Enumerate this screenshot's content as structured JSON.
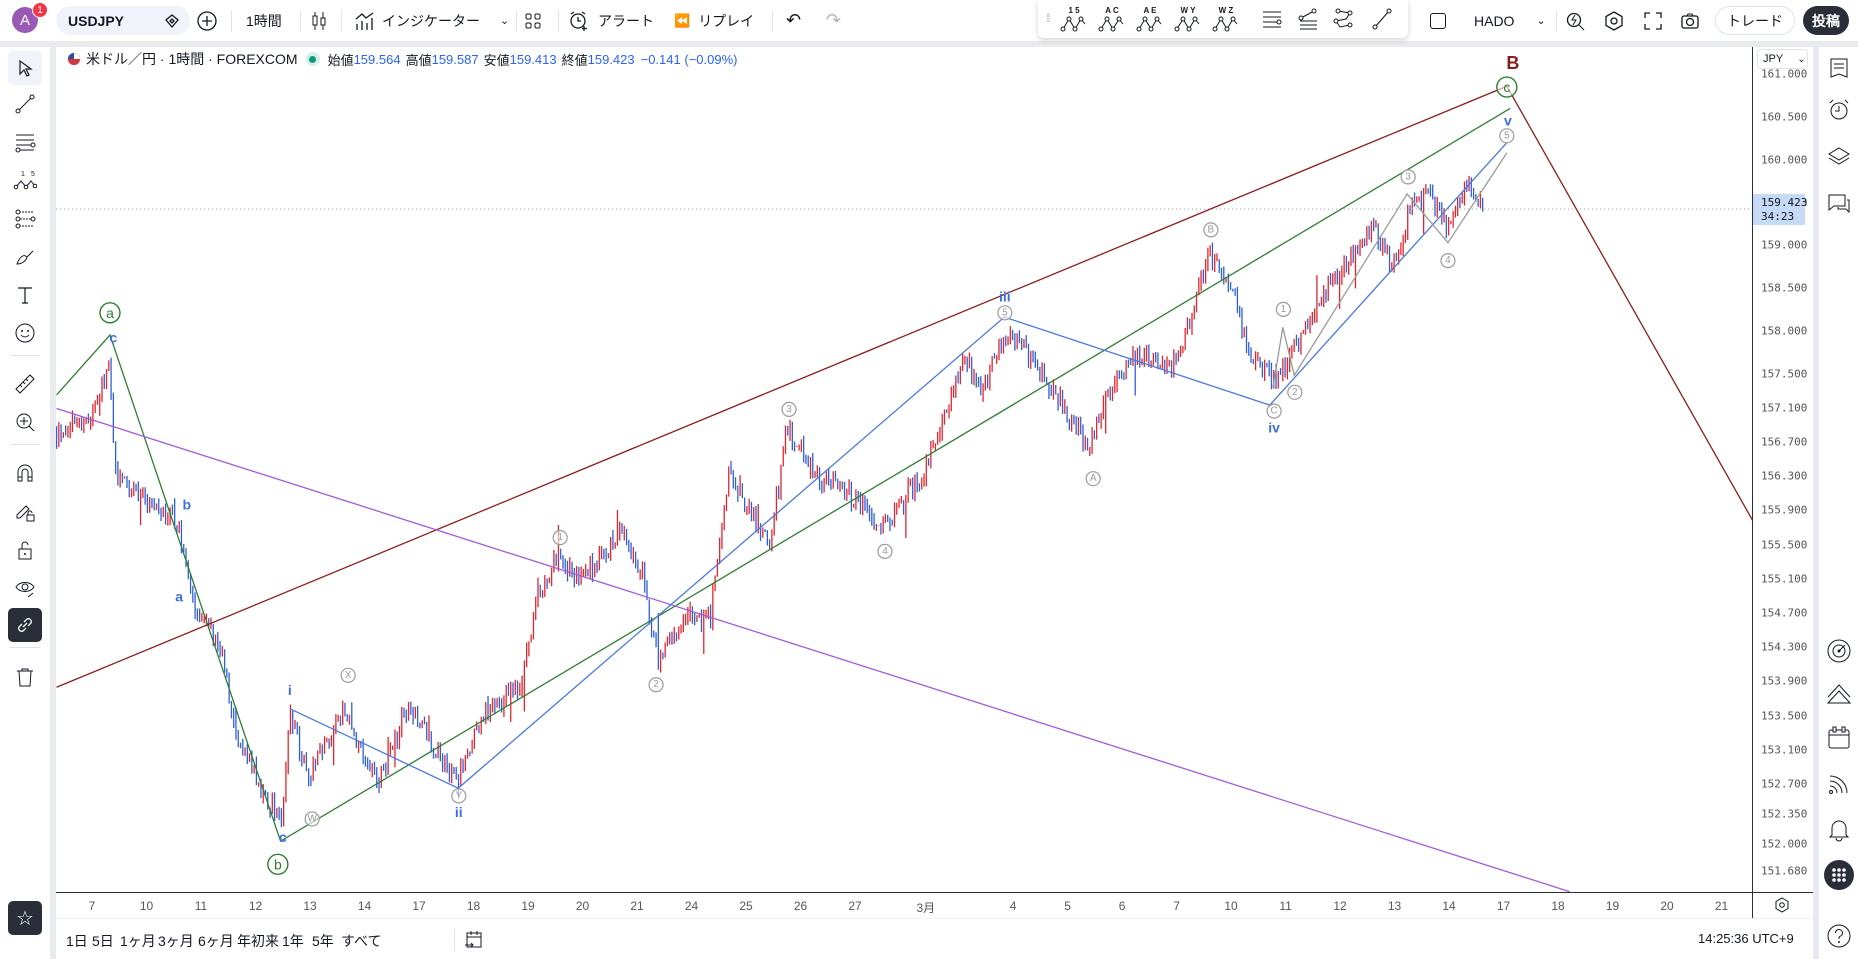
{
  "topbar": {
    "avatar_letter": "A",
    "notification_count": "1",
    "symbol": "USDJPY",
    "interval": "1時間",
    "indicators_label": "インジケーター",
    "alert_label": "アラート",
    "replay_label": "リプレイ",
    "layout_name": "HADO",
    "trade_label": "トレード",
    "publish_label": "投稿",
    "drawing_templates": [
      "1 5",
      "A C",
      "A E",
      "W Y",
      "W Z"
    ]
  },
  "legend": {
    "title": "米ドル／円 · 1時間 · FOREXCOM",
    "open_label": "始値",
    "open": "159.564",
    "high_label": "高値",
    "high": "159.587",
    "low_label": "安値",
    "low": "159.413",
    "close_label": "終値",
    "close": "159.423",
    "change": "−0.141 (−0.09%)"
  },
  "price_axis": {
    "currency": "JPY",
    "current_price": "159.423",
    "countdown": "34:23",
    "ticks": [
      "161.000",
      "160.500",
      "160.000",
      "159.500",
      "159.000",
      "158.500",
      "158.000",
      "157.500",
      "157.100",
      "156.700",
      "156.300",
      "155.900",
      "155.500",
      "155.100",
      "154.700",
      "154.300",
      "153.900",
      "153.500",
      "153.100",
      "152.700",
      "152.350",
      "152.000",
      "151.680"
    ]
  },
  "time_axis": {
    "ticks": [
      {
        "label": "7",
        "slot": 0
      },
      {
        "label": "10",
        "slot": 1
      },
      {
        "label": "11",
        "slot": 2
      },
      {
        "label": "12",
        "slot": 3
      },
      {
        "label": "13",
        "slot": 4
      },
      {
        "label": "14",
        "slot": 5
      },
      {
        "label": "17",
        "slot": 6
      },
      {
        "label": "18",
        "slot": 7
      },
      {
        "label": "19",
        "slot": 8
      },
      {
        "label": "20",
        "slot": 9
      },
      {
        "label": "21",
        "slot": 10
      },
      {
        "label": "24",
        "slot": 11
      },
      {
        "label": "25",
        "slot": 12
      },
      {
        "label": "26",
        "slot": 13
      },
      {
        "label": "27",
        "slot": 14
      },
      {
        "label": "3月",
        "slot": 15.3
      },
      {
        "label": "4",
        "slot": 16.9
      },
      {
        "label": "5",
        "slot": 17.9
      },
      {
        "label": "6",
        "slot": 18.9
      },
      {
        "label": "7",
        "slot": 19.9
      },
      {
        "label": "10",
        "slot": 20.9
      },
      {
        "label": "11",
        "slot": 21.9
      },
      {
        "label": "12",
        "slot": 22.9
      },
      {
        "label": "13",
        "slot": 23.9
      },
      {
        "label": "14",
        "slot": 24.9
      },
      {
        "label": "17",
        "slot": 25.9
      },
      {
        "label": "18",
        "slot": 26.9
      },
      {
        "label": "19",
        "slot": 27.9
      },
      {
        "label": "20",
        "slot": 28.9
      },
      {
        "label": "21",
        "slot": 29.9
      }
    ]
  },
  "bottombar": {
    "ranges": [
      "1日",
      "5日",
      "1ヶ月",
      "3ヶ月",
      "6ヶ月",
      "年初来",
      "1年",
      "5年",
      "すべて"
    ],
    "clock": "14:25:36 UTC+9"
  },
  "colors": {
    "up": "#e0252f",
    "down": "#2f5fd6",
    "brown": "#8b1c1c",
    "green": "#2e7d32",
    "purple": "#a25bd6",
    "blue": "#4a78e0",
    "gray": "#9a9a9a",
    "label_blue": "#3d6fe0"
  },
  "chart_data": {
    "type": "ohlc",
    "symbol": "USDJPY",
    "interval": "1h",
    "price_range": [
      151.5,
      161.2
    ],
    "bars_per_slot": 24,
    "price_path": [
      [
        -0.65,
        156.81
      ],
      [
        0,
        157.0
      ],
      [
        0.33,
        157.71
      ],
      [
        0.41,
        156.33
      ],
      [
        1.13,
        155.91
      ],
      [
        1.57,
        155.77
      ],
      [
        1.89,
        154.66
      ],
      [
        2.33,
        154.38
      ],
      [
        2.65,
        153.27
      ],
      [
        3.13,
        152.58
      ],
      [
        3.48,
        152.3
      ],
      [
        3.63,
        153.55
      ],
      [
        3.96,
        152.72
      ],
      [
        4.61,
        153.55
      ],
      [
        5.26,
        152.72
      ],
      [
        5.8,
        153.62
      ],
      [
        6.67,
        152.72
      ],
      [
        7.22,
        153.55
      ],
      [
        7.87,
        153.83
      ],
      [
        8.2,
        154.94
      ],
      [
        8.57,
        155.35
      ],
      [
        8.96,
        155.08
      ],
      [
        9.72,
        155.63
      ],
      [
        10.15,
        155.08
      ],
      [
        10.37,
        154.11
      ],
      [
        10.91,
        154.66
      ],
      [
        11.35,
        154.66
      ],
      [
        11.67,
        156.33
      ],
      [
        12.43,
        155.49
      ],
      [
        12.76,
        156.88
      ],
      [
        13.3,
        156.33
      ],
      [
        13.96,
        156.05
      ],
      [
        14.5,
        155.7
      ],
      [
        15.26,
        156.33
      ],
      [
        15.7,
        157.16
      ],
      [
        16.02,
        157.71
      ],
      [
        16.35,
        157.3
      ],
      [
        16.74,
        157.99
      ],
      [
        17.22,
        157.71
      ],
      [
        17.65,
        157.3
      ],
      [
        18.3,
        156.6
      ],
      [
        18.63,
        157.3
      ],
      [
        19.17,
        157.71
      ],
      [
        19.83,
        157.57
      ],
      [
        20.15,
        158.13
      ],
      [
        20.48,
        158.89
      ],
      [
        20.91,
        158.54
      ],
      [
        21.24,
        157.71
      ],
      [
        21.67,
        157.43
      ],
      [
        22.0,
        157.71
      ],
      [
        22.43,
        158.27
      ],
      [
        22.87,
        158.68
      ],
      [
        23.52,
        159.24
      ],
      [
        23.85,
        158.68
      ],
      [
        24.17,
        159.38
      ],
      [
        24.5,
        159.65
      ],
      [
        24.87,
        159.17
      ],
      [
        25.2,
        159.72
      ],
      [
        25.52,
        159.42
      ]
    ],
    "last_price": 159.423,
    "drawings": [
      {
        "name": "brown-trendline",
        "color": "brown",
        "points": [
          [
            -0.65,
            153.83
          ],
          [
            25.96,
            160.86
          ],
          [
            30.48,
            155.77
          ]
        ]
      },
      {
        "name": "green-wave-line",
        "color": "green",
        "points": [
          [
            -0.65,
            157.25
          ],
          [
            0.33,
            157.95
          ],
          [
            3.46,
            152.03
          ],
          [
            26.02,
            160.6
          ]
        ]
      },
      {
        "name": "purple-trendline",
        "color": "purple",
        "points": [
          [
            -0.65,
            157.09
          ],
          [
            27.11,
            151.44
          ]
        ]
      },
      {
        "name": "blue-wave-line",
        "color": "blue",
        "points": [
          [
            3.63,
            153.58
          ],
          [
            6.72,
            152.65
          ],
          [
            16.74,
            158.16
          ],
          [
            21.61,
            157.13
          ],
          [
            25.96,
            160.2
          ]
        ]
      },
      {
        "name": "gray-subwave-line",
        "color": "gray",
        "points": [
          [
            21.67,
            157.34
          ],
          [
            21.85,
            158.04
          ],
          [
            22.06,
            157.48
          ],
          [
            24.13,
            159.6
          ],
          [
            24.88,
            159.03
          ],
          [
            25.96,
            160.08
          ]
        ]
      }
    ],
    "labels": [
      {
        "text": "B",
        "style": "bold",
        "color": "brown",
        "slot": 26.07,
        "price": 161.13
      },
      {
        "text": "c",
        "style": "circle-big",
        "color": "green",
        "slot": 25.96,
        "price": 160.85
      },
      {
        "text": "v",
        "style": "text",
        "color": "label_blue",
        "slot": 25.98,
        "price": 160.46
      },
      {
        "text": "5",
        "style": "circle",
        "color": "gray",
        "slot": 25.96,
        "price": 160.28
      },
      {
        "text": "3",
        "style": "circle",
        "color": "gray",
        "slot": 24.15,
        "price": 159.8
      },
      {
        "text": "4",
        "style": "circle",
        "color": "gray",
        "slot": 24.88,
        "price": 158.82
      },
      {
        "text": "B",
        "style": "circle",
        "color": "gray",
        "slot": 20.53,
        "price": 159.18
      },
      {
        "text": "1",
        "style": "circle",
        "color": "gray",
        "slot": 21.86,
        "price": 158.25
      },
      {
        "text": "2",
        "style": "circle",
        "color": "gray",
        "slot": 22.07,
        "price": 157.28
      },
      {
        "text": "C",
        "style": "circle",
        "color": "gray",
        "slot": 21.69,
        "price": 157.06
      },
      {
        "text": "iv",
        "style": "text",
        "color": "label_blue",
        "slot": 21.69,
        "price": 156.87
      },
      {
        "text": "iii",
        "style": "text",
        "color": "label_blue",
        "slot": 16.75,
        "price": 158.4
      },
      {
        "text": "5",
        "style": "circle",
        "color": "gray",
        "slot": 16.75,
        "price": 158.21
      },
      {
        "text": "3",
        "style": "circle",
        "color": "gray",
        "slot": 12.79,
        "price": 157.08
      },
      {
        "text": "4",
        "style": "circle",
        "color": "gray",
        "slot": 14.55,
        "price": 155.42
      },
      {
        "text": "A",
        "style": "circle",
        "color": "gray",
        "slot": 18.37,
        "price": 156.27
      },
      {
        "text": "1",
        "style": "circle",
        "color": "gray",
        "slot": 8.59,
        "price": 155.58
      },
      {
        "text": "2",
        "style": "circle",
        "color": "gray",
        "slot": 10.35,
        "price": 153.86
      },
      {
        "text": "X",
        "style": "circle",
        "color": "gray",
        "slot": 4.7,
        "price": 153.97
      },
      {
        "text": "W",
        "style": "circle",
        "color": "gray",
        "slot": 4.04,
        "price": 152.29
      },
      {
        "text": "Y",
        "style": "circle",
        "color": "gray",
        "slot": 6.73,
        "price": 152.56
      },
      {
        "text": "ii",
        "style": "text",
        "color": "label_blue",
        "slot": 6.73,
        "price": 152.37
      },
      {
        "text": "i",
        "style": "text",
        "color": "label_blue",
        "slot": 3.63,
        "price": 153.8
      },
      {
        "text": "c",
        "style": "text",
        "color": "label_blue",
        "slot": 3.5,
        "price": 152.08
      },
      {
        "text": "b",
        "style": "circle-big",
        "color": "green",
        "slot": 3.41,
        "price": 151.76
      },
      {
        "text": "a",
        "style": "circle-big",
        "color": "green",
        "slot": 0.33,
        "price": 158.21
      },
      {
        "text": "c",
        "style": "text",
        "color": "label_blue",
        "slot": 0.39,
        "price": 157.92
      },
      {
        "text": "b",
        "style": "text",
        "color": "label_blue",
        "slot": 1.74,
        "price": 155.97
      },
      {
        "text": "a",
        "style": "text",
        "color": "label_blue",
        "slot": 1.6,
        "price": 154.89
      }
    ]
  }
}
